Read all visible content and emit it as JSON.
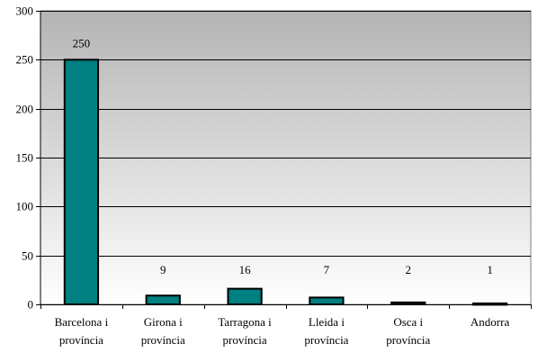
{
  "chart_data": {
    "type": "bar",
    "categories": [
      [
        "Barcelona i",
        "província"
      ],
      [
        "Girona i",
        "província"
      ],
      [
        "Tarragona i",
        "província"
      ],
      [
        "Lleida i",
        "província"
      ],
      [
        "Osca i",
        "província"
      ],
      [
        "Andorra"
      ]
    ],
    "values": [
      250,
      9,
      16,
      7,
      2,
      1
    ],
    "data_labels": [
      "250",
      "9",
      "16",
      "7",
      "2",
      "1"
    ],
    "ylim": [
      0,
      300
    ],
    "yticks": [
      0,
      50,
      100,
      150,
      200,
      250,
      300
    ],
    "title": "",
    "xlabel": "",
    "ylabel": "",
    "grid": true,
    "legend": "none",
    "colors": {
      "bar": "#008080",
      "bar_border": "#000000",
      "plot_bg_top": "#b4b4b4",
      "plot_bg_bottom": "#ffffff",
      "gridline": "#000000"
    }
  }
}
